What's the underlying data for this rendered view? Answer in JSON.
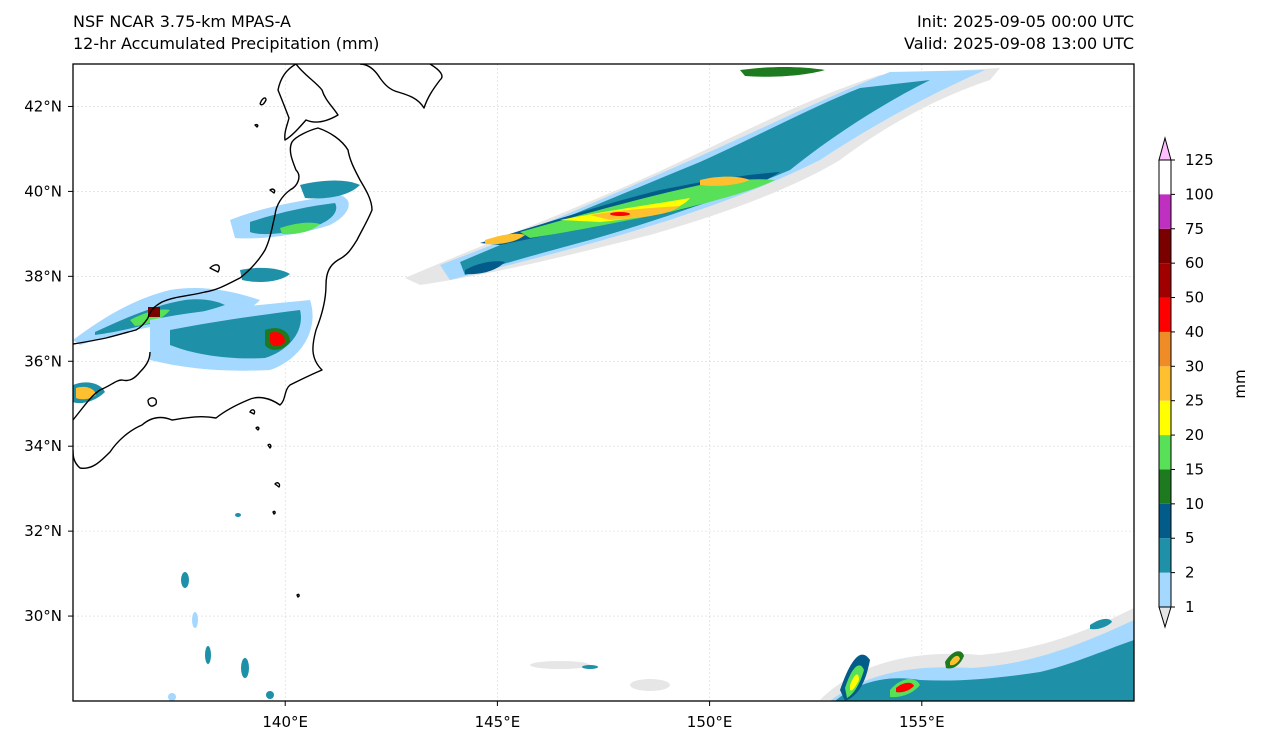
{
  "header": {
    "model": "NSF NCAR 3.75-km MPAS-A",
    "field": "12-hr Accumulated Precipitation (mm)",
    "init": "Init: 2025-09-05 00:00 UTC",
    "valid": "Valid: 2025-09-08 13:00 UTC"
  },
  "map": {
    "lon_range": [
      135,
      160
    ],
    "lat_range": [
      28,
      43
    ],
    "lon_ticks": [
      {
        "value": 140,
        "label": "140°E"
      },
      {
        "value": 145,
        "label": "145°E"
      },
      {
        "value": 150,
        "label": "150°E"
      },
      {
        "value": 155,
        "label": "155°E"
      }
    ],
    "lat_ticks": [
      {
        "value": 42,
        "label": "42°N"
      },
      {
        "value": 40,
        "label": "40°N"
      },
      {
        "value": 38,
        "label": "38°N"
      },
      {
        "value": 36,
        "label": "36°N"
      },
      {
        "value": 34,
        "label": "34°N"
      },
      {
        "value": 32,
        "label": "32°N"
      },
      {
        "value": 30,
        "label": "30°N"
      }
    ],
    "gridlines": true,
    "coastlines": true
  },
  "colorbar": {
    "unit_label": "mm",
    "levels": [
      "1",
      "2",
      "5",
      "10",
      "15",
      "20",
      "25",
      "30",
      "40",
      "50",
      "60",
      "75",
      "100",
      "125"
    ],
    "colors": [
      "#e6e6e6",
      "#a5d8ff",
      "#1e90a8",
      "#035b8a",
      "#1e7a1e",
      "#58e058",
      "#ffff00",
      "#ffc030",
      "#f08c28",
      "#ff0000",
      "#a00000",
      "#7a0000",
      "#c030c0",
      "#ffc0ff"
    ]
  }
}
